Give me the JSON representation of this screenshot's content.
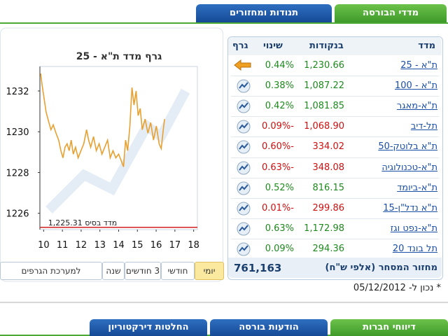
{
  "tabs": [
    "מדדי הבורסה",
    "תנודות ומחזורים"
  ],
  "table": {
    "header": [
      "מדד",
      "בנקודות",
      "שינוי",
      "גרף"
    ],
    "rows": [
      [
        "ת\"א - 25",
        "1,230.66",
        "0.44%"
      ],
      [
        "ת\"א - 100",
        "1,087.22",
        "0.38%"
      ],
      [
        "ת\"א-מאגר",
        "1,081.85",
        "0.42%"
      ],
      [
        "תל-דיב",
        "1,068.90",
        "-0.09%"
      ],
      [
        "ת\"א בלוטק-50",
        "334.02",
        "-0.60%"
      ],
      [
        "ת\"א-טכנולוגיה",
        "348.08",
        "-0.63%"
      ],
      [
        "ת\"א-ביומד",
        "816.15",
        "0.52%"
      ],
      [
        "ת\"א נדל\"ן-15",
        "299.86",
        "-0.01%"
      ],
      [
        "ת\"א-נפט וגז",
        "1,172.98",
        "0.63%"
      ],
      [
        "תל בונד 20",
        "294.36",
        "0.09%"
      ]
    ],
    "footer": [
      "מחזור המסחר (אלפי ש\"ח)",
      "761,163"
    ]
  },
  "note": "* נכון ל- 05/12/2012",
  "chart": {
    "title": "גרף מדד ת\"א - 25",
    "color": "#e8a030",
    "xlim": [
      9.8,
      18.2
    ],
    "xticks": [
      10,
      11,
      12,
      13,
      14,
      15,
      16,
      17,
      18
    ],
    "ylim": [
      1225.2,
      1233.2
    ],
    "yticks": [
      1226,
      1228,
      1230,
      1232
    ],
    "base": {
      "label": "מדד בסיס 1,225.31",
      "value": 1225.31
    },
    "x": [
      9.84,
      9.91,
      10.02,
      10.13,
      10.28,
      10.39,
      10.51,
      10.66,
      10.8,
      10.92,
      11.03,
      11.14,
      11.25,
      11.36,
      11.47,
      11.58,
      11.7,
      11.84,
      11.99,
      12.14,
      12.29,
      12.4,
      12.51,
      12.66,
      12.81,
      12.96,
      13.11,
      13.26,
      13.41,
      13.55,
      13.7,
      13.85,
      14.0,
      14.15,
      14.26,
      14.37,
      14.48,
      14.6,
      14.71,
      14.82,
      14.93,
      15.04,
      15.15,
      15.26,
      15.41,
      15.56,
      15.71,
      15.86,
      16.01,
      16.16,
      16.27,
      16.38,
      16.45
    ],
    "values": [
      1232.86,
      1232.34,
      1231.66,
      1230.97,
      1230.45,
      1230.1,
      1230.34,
      1229.93,
      1229.59,
      1229.07,
      1228.72,
      1229.24,
      1229.41,
      1229.07,
      1229.59,
      1228.9,
      1229.24,
      1228.72,
      1229.07,
      1229.41,
      1230.1,
      1229.59,
      1229.24,
      1229.76,
      1229.07,
      1229.41,
      1228.9,
      1229.24,
      1229.59,
      1228.72,
      1229.07,
      1228.72,
      1228.9,
      1228.55,
      1228.28,
      1229.59,
      1229.07,
      1230.28,
      1232.17,
      1231.31,
      1232.0,
      1230.79,
      1231.14,
      1230.1,
      1230.62,
      1229.93,
      1230.45,
      1229.59,
      1230.28,
      1229.41,
      1229.17,
      1230.1,
      1230.62
    ]
  },
  "periods": [
    "יומי",
    "חודשי",
    "3 חודשים",
    "שנה",
    "למערכת הגרפים"
  ],
  "bottom_tabs": [
    "דיווחי חברות",
    "הודעות בורסה",
    "החלטות דירקטוריון"
  ]
}
